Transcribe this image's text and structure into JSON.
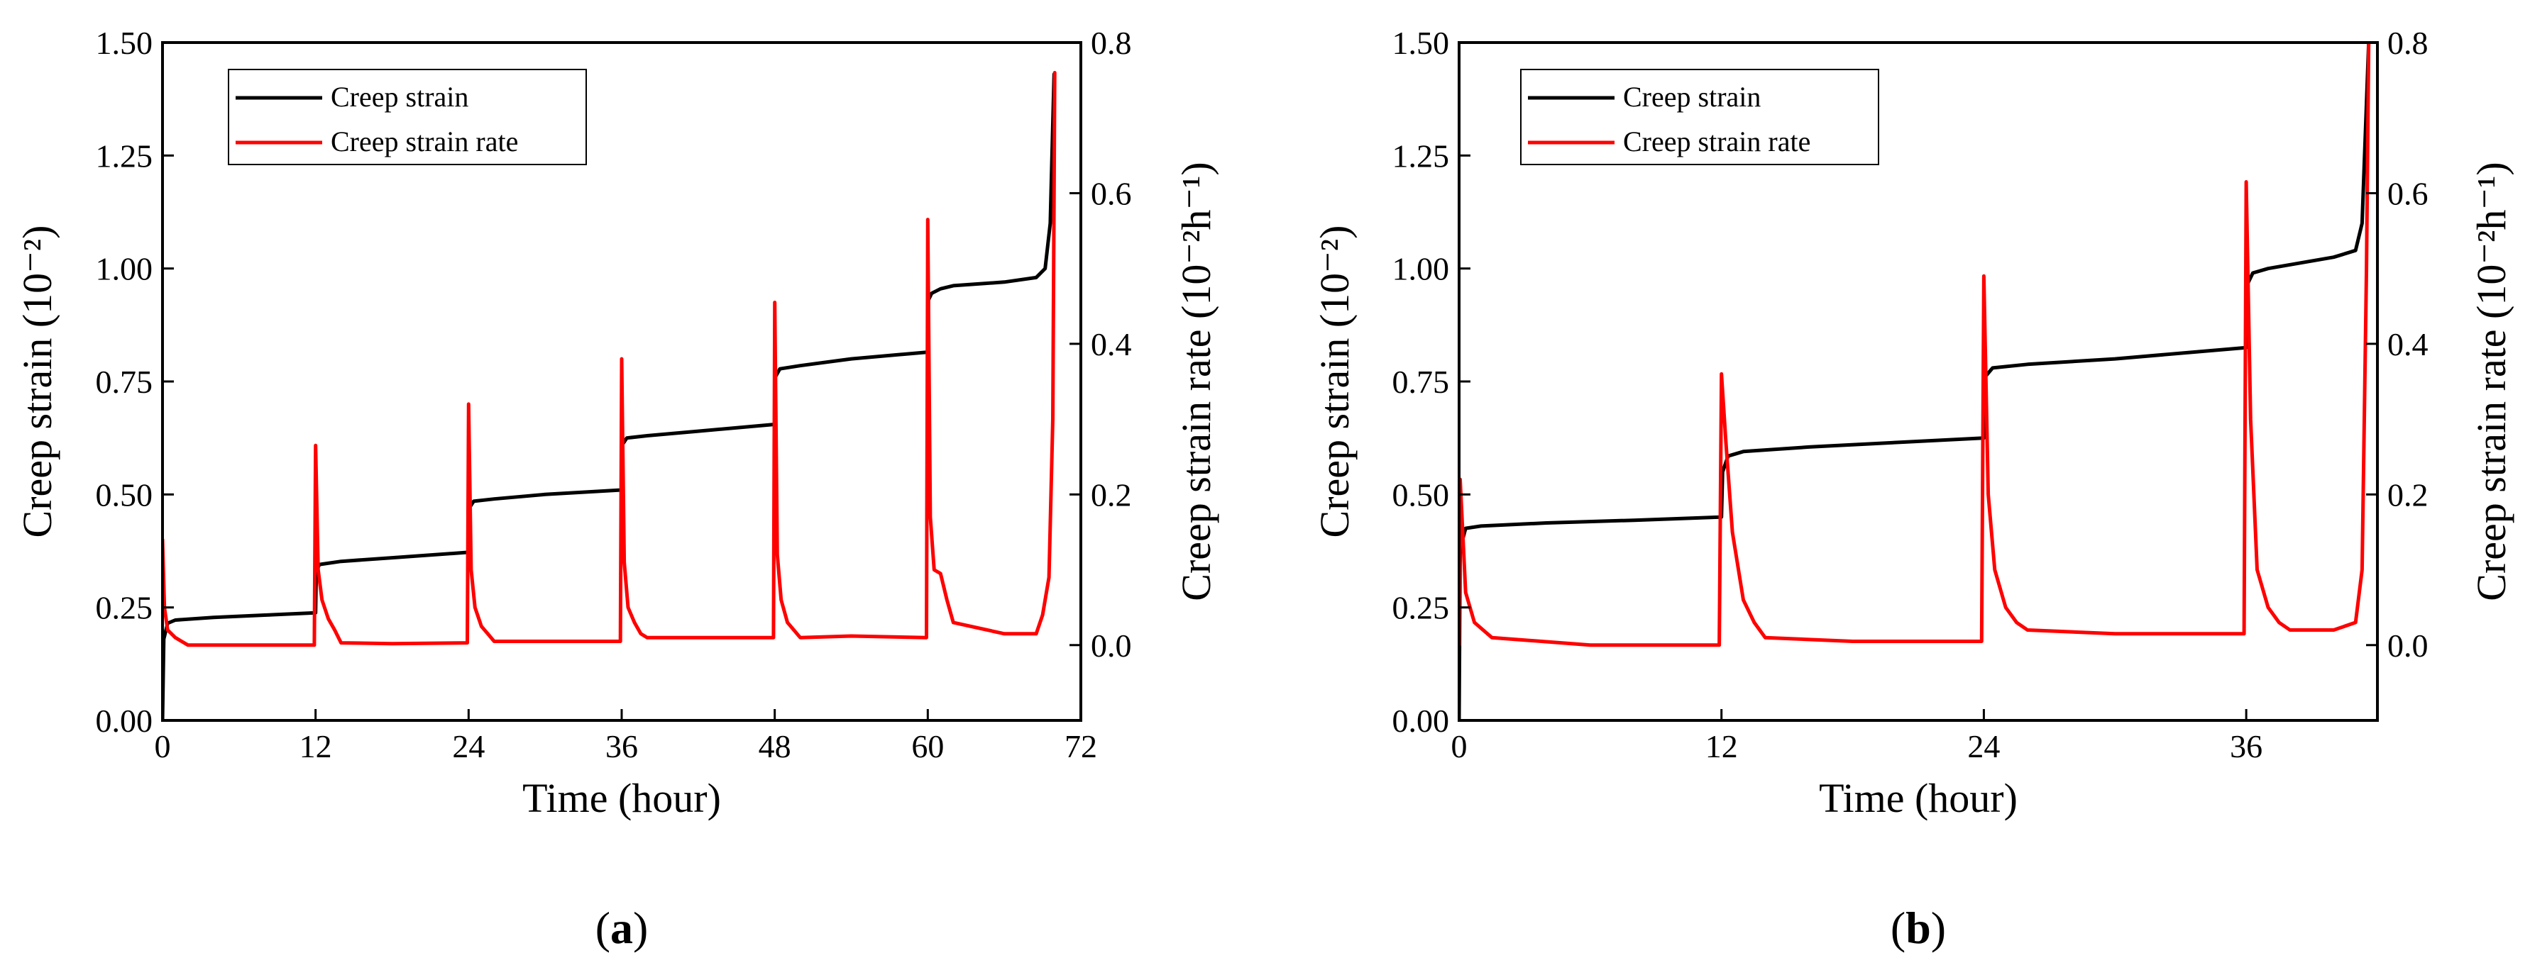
{
  "chart_data": [
    {
      "type": "line",
      "panel_label": "a",
      "xlabel": "Time (hour)",
      "ylabel_left": "Creep strain (10⁻²)",
      "ylabel_right": "Creep strain rate (10⁻²h⁻¹)",
      "xlim": [
        0,
        72
      ],
      "xticks": [
        0,
        12,
        24,
        36,
        48,
        60,
        72
      ],
      "ylim_left": [
        0,
        1.5
      ],
      "yticks_left": [
        "0.00",
        "0.25",
        "0.50",
        "0.75",
        "1.00",
        "1.25",
        "1.50"
      ],
      "ylim_right": [
        -0.1,
        0.8
      ],
      "yticks_right": [
        "0.0",
        "0.2",
        "0.4",
        "0.6",
        "0.8"
      ],
      "legend_position": "top-left",
      "series": [
        {
          "name": "Creep strain",
          "axis": "left",
          "color": "#000000",
          "x": [
            0,
            0.1,
            0.4,
            1,
            4,
            8,
            12,
            12.05,
            12.3,
            14,
            18,
            24,
            24.05,
            24.4,
            26,
            30,
            36,
            36.05,
            36.4,
            38,
            42,
            48,
            48.05,
            48.4,
            50,
            54,
            60,
            60.05,
            60.3,
            61,
            62,
            66,
            68.5,
            69.2,
            69.6,
            69.9
          ],
          "values": [
            0.0,
            0.18,
            0.215,
            0.222,
            0.228,
            0.233,
            0.238,
            0.33,
            0.345,
            0.352,
            0.36,
            0.372,
            0.47,
            0.485,
            0.49,
            0.5,
            0.51,
            0.61,
            0.625,
            0.63,
            0.64,
            0.655,
            0.76,
            0.778,
            0.785,
            0.8,
            0.815,
            0.93,
            0.945,
            0.955,
            0.962,
            0.97,
            0.98,
            1.0,
            1.1,
            1.43
          ]
        },
        {
          "name": "Creep strain rate",
          "axis": "right",
          "color": "#ff0000",
          "x": [
            0,
            0.15,
            0.4,
            1,
            2,
            6,
            11.9,
            12,
            12.2,
            12.5,
            13,
            13.5,
            14,
            18,
            23.9,
            24,
            24.2,
            24.5,
            25,
            25.5,
            26,
            30,
            35.9,
            36,
            36.2,
            36.5,
            37,
            37.5,
            38,
            42,
            47.9,
            48,
            48.2,
            48.5,
            49,
            49.5,
            50,
            54,
            59.9,
            60,
            60.2,
            60.5,
            61,
            61.5,
            62,
            66,
            68.5,
            69,
            69.5,
            69.8,
            69.95
          ],
          "values": [
            0.14,
            0.05,
            0.02,
            0.01,
            0.0,
            0.0,
            0.0,
            0.265,
            0.1,
            0.06,
            0.035,
            0.02,
            0.003,
            0.002,
            0.003,
            0.32,
            0.1,
            0.05,
            0.025,
            0.015,
            0.005,
            0.005,
            0.005,
            0.38,
            0.11,
            0.05,
            0.03,
            0.015,
            0.01,
            0.01,
            0.01,
            0.455,
            0.12,
            0.06,
            0.03,
            0.02,
            0.01,
            0.012,
            0.01,
            0.565,
            0.17,
            0.1,
            0.095,
            0.06,
            0.03,
            0.015,
            0.015,
            0.04,
            0.09,
            0.3,
            0.76
          ]
        }
      ]
    },
    {
      "type": "line",
      "panel_label": "b",
      "xlabel": "Time (hour)",
      "ylabel_left": "Creep strain (10⁻²)",
      "ylabel_right": "Creep strain rate (10⁻²h⁻¹)",
      "xlim": [
        0,
        42
      ],
      "xticks": [
        0,
        12,
        24,
        36
      ],
      "ylim_left": [
        0,
        1.5
      ],
      "yticks_left": [
        "0.00",
        "0.25",
        "0.50",
        "0.75",
        "1.00",
        "1.25",
        "1.50"
      ],
      "ylim_right": [
        -0.1,
        0.8
      ],
      "yticks_right": [
        "0.0",
        "0.2",
        "0.4",
        "0.6",
        "0.8"
      ],
      "legend_position": "top-left",
      "series": [
        {
          "name": "Creep strain",
          "axis": "left",
          "color": "#000000",
          "x": [
            0,
            0.05,
            0.3,
            1,
            4,
            8,
            12,
            12.05,
            12.3,
            13,
            16,
            20,
            24,
            24.05,
            24.4,
            26,
            30,
            36,
            36.05,
            36.3,
            37,
            40,
            41,
            41.3,
            41.6
          ],
          "values": [
            0.0,
            0.38,
            0.425,
            0.43,
            0.437,
            0.443,
            0.45,
            0.55,
            0.585,
            0.595,
            0.605,
            0.615,
            0.625,
            0.76,
            0.78,
            0.788,
            0.8,
            0.825,
            0.965,
            0.99,
            1.0,
            1.025,
            1.04,
            1.1,
            1.5
          ]
        },
        {
          "name": "Creep strain rate",
          "axis": "right",
          "color": "#ff0000",
          "x": [
            0,
            0.05,
            0.3,
            0.7,
            1.5,
            6,
            11.9,
            12,
            12.2,
            12.5,
            13,
            13.5,
            14,
            18,
            23.9,
            24,
            24.2,
            24.5,
            25,
            25.5,
            26,
            30,
            35.9,
            36,
            36.2,
            36.5,
            37,
            37.5,
            38,
            40,
            41,
            41.3,
            41.5,
            41.6
          ],
          "values": [
            0.0,
            0.22,
            0.07,
            0.03,
            0.01,
            0.0,
            0.0,
            0.36,
            0.27,
            0.15,
            0.06,
            0.03,
            0.01,
            0.005,
            0.005,
            0.49,
            0.2,
            0.1,
            0.05,
            0.03,
            0.02,
            0.015,
            0.015,
            0.615,
            0.3,
            0.1,
            0.05,
            0.03,
            0.02,
            0.02,
            0.03,
            0.1,
            0.5,
            0.8
          ]
        }
      ]
    }
  ]
}
